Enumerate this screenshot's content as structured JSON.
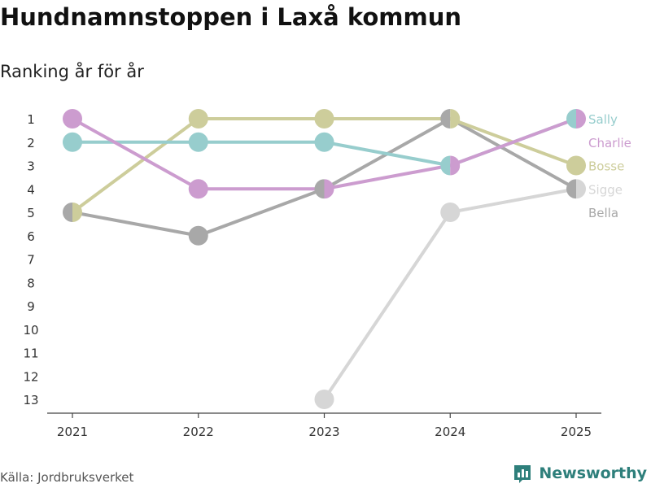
{
  "title": "Hundnamnstoppen i Laxå kommun",
  "subtitle": "Ranking år för år",
  "source": "Källa: Jordbruksverket",
  "brand": {
    "name": "Newsworthy",
    "icon": "bar-chart-icon",
    "color": "#2e7f7b"
  },
  "chart_data": {
    "type": "line",
    "x": [
      "2021",
      "2022",
      "2023",
      "2024",
      "2025"
    ],
    "y_ticks": [
      1,
      2,
      3,
      4,
      5,
      6,
      7,
      8,
      9,
      10,
      11,
      12,
      13
    ],
    "ylim": [
      1,
      13
    ],
    "y_reversed": true,
    "grid": false,
    "legend": "right, end of lines",
    "series": [
      {
        "name": "Bella",
        "color": "#a8a8a8",
        "values": [
          5,
          6,
          4,
          1,
          4
        ]
      },
      {
        "name": "Bosse",
        "color": "#cdcd9b",
        "values": [
          5,
          1,
          1,
          1,
          3
        ]
      },
      {
        "name": "Sally",
        "color": "#97cdcd",
        "values": [
          2,
          2,
          2,
          3,
          1
        ]
      },
      {
        "name": "Charlie",
        "color": "#cc9ccf",
        "values": [
          1,
          4,
          4,
          3,
          1
        ]
      },
      {
        "name": "Sigge",
        "color": "#d6d6d6",
        "values": [
          null,
          null,
          13,
          5,
          4
        ]
      }
    ]
  }
}
